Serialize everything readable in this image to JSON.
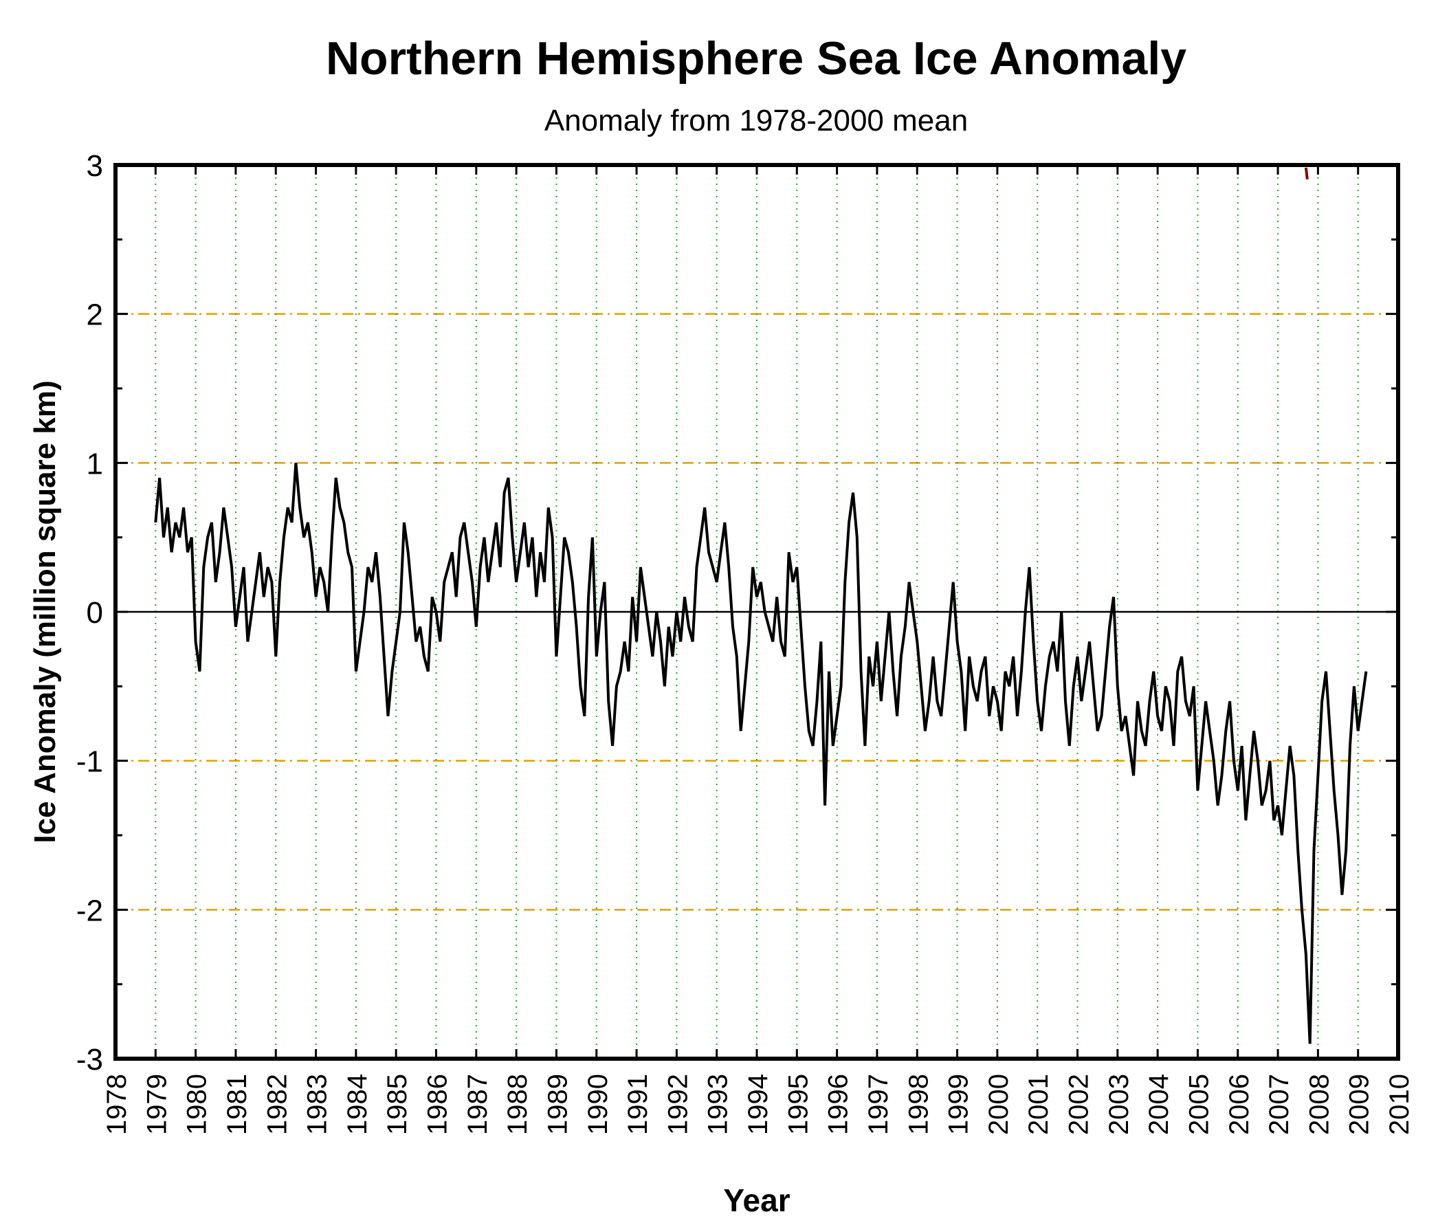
{
  "chart_data": {
    "type": "line",
    "title": "Northern Hemisphere Sea Ice Anomaly",
    "subtitle": "Anomaly from 1978-2000 mean",
    "xlabel": "Year",
    "ylabel": "Ice Anomaly (million square km)",
    "xlim": [
      1978,
      2010
    ],
    "ylim": [
      -3,
      3
    ],
    "x_ticks": [
      "1978",
      "1979",
      "1980",
      "1981",
      "1982",
      "1983",
      "1984",
      "1985",
      "1986",
      "1987",
      "1988",
      "1989",
      "1990",
      "1991",
      "1992",
      "1993",
      "1994",
      "1995",
      "1996",
      "1997",
      "1998",
      "1999",
      "2000",
      "2001",
      "2002",
      "2003",
      "2004",
      "2005",
      "2006",
      "2007",
      "2008",
      "2009",
      "2010"
    ],
    "y_ticks": [
      "-3",
      "-2",
      "-1",
      "0",
      "1",
      "2",
      "3"
    ],
    "grid": true,
    "colors": {
      "series": "#000000",
      "hgrid": "#e0a000",
      "vgrid": "#2e9e2e",
      "zero_line": "#000000",
      "artifact": "#8b0000"
    },
    "series": [
      {
        "x": [
          1979.0,
          1979.1,
          1979.2,
          1979.3,
          1979.4,
          1979.5,
          1979.6,
          1979.7,
          1979.8,
          1979.9,
          1980.0,
          1980.1,
          1980.2,
          1980.3,
          1980.4,
          1980.5,
          1980.6,
          1980.7,
          1980.8,
          1980.9,
          1981.0,
          1981.1,
          1981.2,
          1981.3,
          1981.4,
          1981.5,
          1981.6,
          1981.7,
          1981.8,
          1981.9,
          1982.0,
          1982.1,
          1982.2,
          1982.3,
          1982.4,
          1982.5,
          1982.6,
          1982.7,
          1982.8,
          1982.9,
          1983.0,
          1983.1,
          1983.2,
          1983.3,
          1983.4,
          1983.5,
          1983.6,
          1983.7,
          1983.8,
          1983.9,
          1984.0,
          1984.1,
          1984.2,
          1984.3,
          1984.4,
          1984.5,
          1984.6,
          1984.7,
          1984.8,
          1984.9,
          1985.0,
          1985.1,
          1985.2,
          1985.3,
          1985.4,
          1985.5,
          1985.6,
          1985.7,
          1985.8,
          1985.9,
          1986.0,
          1986.1,
          1986.2,
          1986.3,
          1986.4,
          1986.5,
          1986.6,
          1986.7,
          1986.8,
          1986.9,
          1987.0,
          1987.1,
          1987.2,
          1987.3,
          1987.4,
          1987.5,
          1987.6,
          1987.7,
          1987.8,
          1987.9,
          1988.0,
          1988.1,
          1988.2,
          1988.3,
          1988.4,
          1988.5,
          1988.6,
          1988.7,
          1988.8,
          1988.9,
          1989.0,
          1989.1,
          1989.2,
          1989.3,
          1989.4,
          1989.5,
          1989.6,
          1989.7,
          1989.8,
          1989.9,
          1990.0,
          1990.1,
          1990.2,
          1990.3,
          1990.4,
          1990.5,
          1990.6,
          1990.7,
          1990.8,
          1990.9,
          1991.0,
          1991.1,
          1991.2,
          1991.3,
          1991.4,
          1991.5,
          1991.6,
          1991.7,
          1991.8,
          1991.9,
          1992.0,
          1992.1,
          1992.2,
          1992.3,
          1992.4,
          1992.5,
          1992.6,
          1992.7,
          1992.8,
          1992.9,
          1993.0,
          1993.1,
          1993.2,
          1993.3,
          1993.4,
          1993.5,
          1993.6,
          1993.7,
          1993.8,
          1993.9,
          1994.0,
          1994.1,
          1994.2,
          1994.3,
          1994.4,
          1994.5,
          1994.6,
          1994.7,
          1994.8,
          1994.9,
          1995.0,
          1995.1,
          1995.2,
          1995.3,
          1995.4,
          1995.5,
          1995.6,
          1995.7,
          1995.8,
          1995.9,
          1996.0,
          1996.1,
          1996.2,
          1996.3,
          1996.4,
          1996.5,
          1996.6,
          1996.7,
          1996.8,
          1996.9,
          1997.0,
          1997.1,
          1997.2,
          1997.3,
          1997.4,
          1997.5,
          1997.6,
          1997.7,
          1997.8,
          1997.9,
          1998.0,
          1998.1,
          1998.2,
          1998.3,
          1998.4,
          1998.5,
          1998.6,
          1998.7,
          1998.8,
          1998.9,
          1999.0,
          1999.1,
          1999.2,
          1999.3,
          1999.4,
          1999.5,
          1999.6,
          1999.7,
          1999.8,
          1999.9,
          2000.0,
          2000.1,
          2000.2,
          2000.3,
          2000.4,
          2000.5,
          2000.6,
          2000.7,
          2000.8,
          2000.9,
          2001.0,
          2001.1,
          2001.2,
          2001.3,
          2001.4,
          2001.5,
          2001.6,
          2001.7,
          2001.8,
          2001.9,
          2002.0,
          2002.1,
          2002.2,
          2002.3,
          2002.4,
          2002.5,
          2002.6,
          2002.7,
          2002.8,
          2002.9,
          2003.0,
          2003.1,
          2003.2,
          2003.3,
          2003.4,
          2003.5,
          2003.6,
          2003.7,
          2003.8,
          2003.9,
          2004.0,
          2004.1,
          2004.2,
          2004.3,
          2004.4,
          2004.5,
          2004.6,
          2004.7,
          2004.8,
          2004.9,
          2005.0,
          2005.1,
          2005.2,
          2005.3,
          2005.4,
          2005.5,
          2005.6,
          2005.7,
          2005.8,
          2005.9,
          2006.0,
          2006.1,
          2006.2,
          2006.3,
          2006.4,
          2006.5,
          2006.6,
          2006.7,
          2006.8,
          2006.9,
          2007.0,
          2007.1,
          2007.2,
          2007.3,
          2007.4,
          2007.5,
          2007.6,
          2007.7,
          2007.8,
          2007.9,
          2008.0,
          2008.1,
          2008.2,
          2008.3,
          2008.4,
          2008.5,
          2008.6,
          2008.7,
          2008.8,
          2008.9,
          2009.0,
          2009.1,
          2009.2
        ],
        "y": [
          0.6,
          0.9,
          0.5,
          0.7,
          0.4,
          0.6,
          0.5,
          0.7,
          0.4,
          0.5,
          -0.2,
          -0.4,
          0.3,
          0.5,
          0.6,
          0.2,
          0.4,
          0.7,
          0.5,
          0.3,
          -0.1,
          0.1,
          0.3,
          -0.2,
          0.0,
          0.2,
          0.4,
          0.1,
          0.3,
          0.2,
          -0.3,
          0.2,
          0.5,
          0.7,
          0.6,
          1.0,
          0.7,
          0.5,
          0.6,
          0.4,
          0.1,
          0.3,
          0.2,
          0.0,
          0.5,
          0.9,
          0.7,
          0.6,
          0.4,
          0.3,
          -0.4,
          -0.2,
          0.0,
          0.3,
          0.2,
          0.4,
          0.1,
          -0.3,
          -0.7,
          -0.4,
          -0.2,
          0.0,
          0.6,
          0.4,
          0.1,
          -0.2,
          -0.1,
          -0.3,
          -0.4,
          0.1,
          0.0,
          -0.2,
          0.2,
          0.3,
          0.4,
          0.1,
          0.5,
          0.6,
          0.4,
          0.2,
          -0.1,
          0.3,
          0.5,
          0.2,
          0.4,
          0.6,
          0.3,
          0.8,
          0.9,
          0.5,
          0.2,
          0.4,
          0.6,
          0.3,
          0.5,
          0.1,
          0.4,
          0.2,
          0.7,
          0.5,
          -0.3,
          0.1,
          0.5,
          0.4,
          0.2,
          -0.1,
          -0.5,
          -0.7,
          0.1,
          0.5,
          -0.3,
          0.0,
          0.2,
          -0.6,
          -0.9,
          -0.5,
          -0.4,
          -0.2,
          -0.4,
          0.1,
          -0.2,
          0.3,
          0.1,
          -0.1,
          -0.3,
          0.0,
          -0.2,
          -0.5,
          -0.1,
          -0.3,
          0.0,
          -0.2,
          0.1,
          -0.1,
          -0.2,
          0.3,
          0.5,
          0.7,
          0.4,
          0.3,
          0.2,
          0.4,
          0.6,
          0.3,
          -0.1,
          -0.3,
          -0.8,
          -0.5,
          -0.2,
          0.3,
          0.1,
          0.2,
          0.0,
          -0.1,
          -0.2,
          0.1,
          -0.2,
          -0.3,
          0.4,
          0.2,
          0.3,
          -0.1,
          -0.5,
          -0.8,
          -0.9,
          -0.6,
          -0.2,
          -1.3,
          -0.4,
          -0.9,
          -0.7,
          -0.5,
          0.2,
          0.6,
          0.8,
          0.5,
          -0.4,
          -0.9,
          -0.3,
          -0.5,
          -0.2,
          -0.6,
          -0.3,
          0.0,
          -0.4,
          -0.7,
          -0.3,
          -0.1,
          0.2,
          0.0,
          -0.2,
          -0.5,
          -0.8,
          -0.6,
          -0.3,
          -0.6,
          -0.7,
          -0.4,
          -0.1,
          0.2,
          -0.2,
          -0.4,
          -0.8,
          -0.3,
          -0.5,
          -0.6,
          -0.4,
          -0.3,
          -0.7,
          -0.5,
          -0.6,
          -0.8,
          -0.4,
          -0.5,
          -0.3,
          -0.7,
          -0.4,
          0.0,
          0.3,
          -0.2,
          -0.6,
          -0.8,
          -0.5,
          -0.3,
          -0.2,
          -0.4,
          0.0,
          -0.6,
          -0.9,
          -0.5,
          -0.3,
          -0.6,
          -0.4,
          -0.2,
          -0.5,
          -0.8,
          -0.7,
          -0.4,
          -0.1,
          0.1,
          -0.5,
          -0.8,
          -0.7,
          -0.9,
          -1.1,
          -0.6,
          -0.8,
          -0.9,
          -0.6,
          -0.4,
          -0.7,
          -0.8,
          -0.5,
          -0.6,
          -0.9,
          -0.4,
          -0.3,
          -0.6,
          -0.7,
          -0.5,
          -1.2,
          -0.9,
          -0.6,
          -0.8,
          -1.0,
          -1.3,
          -1.1,
          -0.8,
          -0.6,
          -1.0,
          -1.2,
          -0.9,
          -1.4,
          -1.1,
          -0.8,
          -1.0,
          -1.3,
          -1.2,
          -1.0,
          -1.4,
          -1.3,
          -1.5,
          -1.2,
          -0.9,
          -1.1,
          -1.6,
          -2.0,
          -2.3,
          -2.9,
          -1.6,
          -1.1,
          -0.6,
          -0.4,
          -0.8,
          -1.2,
          -1.5,
          -1.9,
          -1.6,
          -0.9,
          -0.5,
          -0.8,
          -0.6,
          -0.4
        ]
      }
    ],
    "artifact_point": {
      "x": 2007.7,
      "y": 2.95
    }
  }
}
